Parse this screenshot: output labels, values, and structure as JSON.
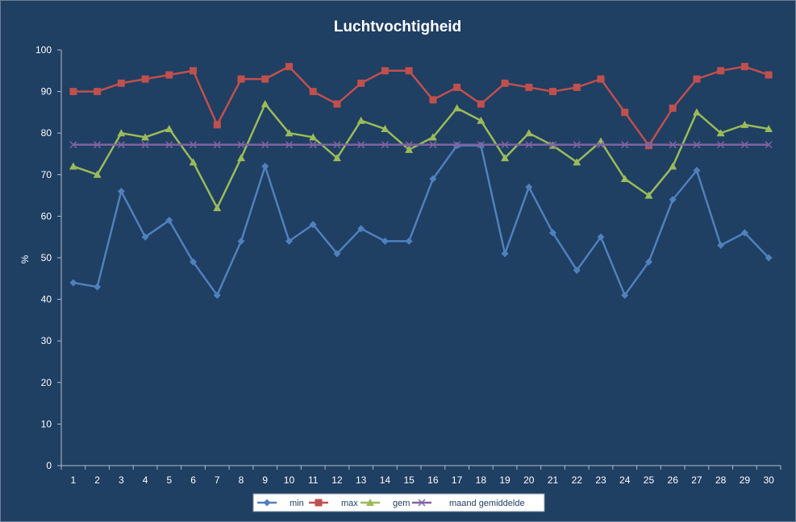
{
  "chart_data": {
    "type": "line",
    "title": "Luchtvochtigheid",
    "xlabel": "",
    "ylabel": "%",
    "ylim": [
      0,
      100
    ],
    "ytick_step": 10,
    "grid": false,
    "legend_position": "bottom",
    "categories": [
      "1",
      "2",
      "3",
      "4",
      "5",
      "6",
      "7",
      "8",
      "9",
      "10",
      "11",
      "12",
      "13",
      "14",
      "15",
      "16",
      "17",
      "18",
      "19",
      "20",
      "21",
      "22",
      "23",
      "24",
      "25",
      "26",
      "27",
      "28",
      "29",
      "30"
    ],
    "series": [
      {
        "name": "min",
        "color": "#4f81bd",
        "marker": "diamond",
        "values": [
          44,
          43,
          66,
          55,
          59,
          49,
          41,
          54,
          72,
          54,
          58,
          51,
          57,
          54,
          54,
          69,
          77,
          77,
          51,
          67,
          56,
          47,
          55,
          41,
          49,
          64,
          71,
          53,
          56,
          50
        ]
      },
      {
        "name": "max",
        "color": "#c0504d",
        "marker": "square",
        "values": [
          90,
          90,
          92,
          93,
          94,
          95,
          82,
          93,
          93,
          96,
          90,
          87,
          92,
          95,
          95,
          88,
          91,
          87,
          92,
          91,
          90,
          91,
          93,
          85,
          77,
          86,
          93,
          95,
          96,
          94
        ]
      },
      {
        "name": "gem",
        "color": "#9bbb59",
        "marker": "triangle",
        "values": [
          72,
          70,
          80,
          79,
          81,
          73,
          62,
          74,
          87,
          80,
          79,
          74,
          83,
          81,
          76,
          79,
          86,
          83,
          74,
          80,
          77,
          73,
          78,
          69,
          65,
          72,
          85,
          80,
          82,
          81
        ]
      },
      {
        "name": "maand gemiddelde",
        "color": "#8064a2",
        "marker": "x",
        "values": [
          77.2,
          77.2,
          77.2,
          77.2,
          77.2,
          77.2,
          77.2,
          77.2,
          77.2,
          77.2,
          77.2,
          77.2,
          77.2,
          77.2,
          77.2,
          77.2,
          77.2,
          77.2,
          77.2,
          77.2,
          77.2,
          77.2,
          77.2,
          77.2,
          77.2,
          77.2,
          77.2,
          77.2,
          77.2,
          77.2
        ]
      }
    ]
  },
  "colors": {
    "background": "#1f3f63",
    "text": "#ffffff",
    "axis": "#b0bccb"
  }
}
